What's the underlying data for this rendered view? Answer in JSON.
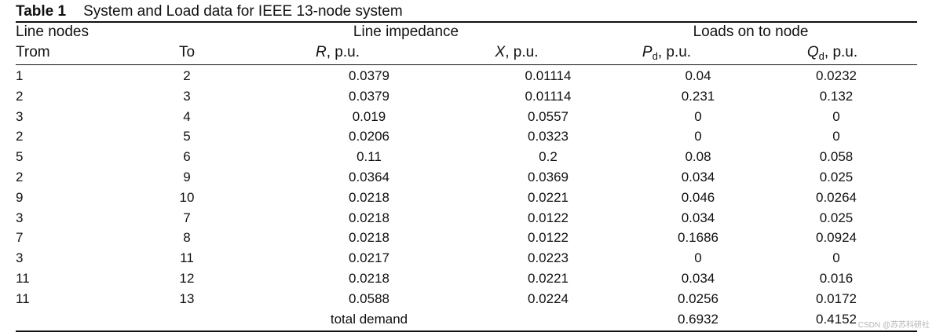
{
  "caption": {
    "label": "Table 1",
    "title": "System and Load data for IEEE 13-node system"
  },
  "headers": {
    "group_line_nodes": "Line nodes",
    "group_line_impedance": "Line impedance",
    "group_loads": "Loads on to node",
    "col_from": "Trom",
    "col_to": "To",
    "col_r_symbol": "R",
    "col_r_unit": ", p.u.",
    "col_x_symbol": "X",
    "col_x_unit": ", p.u.",
    "col_pd_symbol": "P",
    "col_pd_sub": "d",
    "col_pd_unit": ", p.u.",
    "col_qd_symbol": "Q",
    "col_qd_sub": "d",
    "col_qd_unit": ", p.u."
  },
  "rows": [
    {
      "from": "1",
      "to": "2",
      "r": "0.0379",
      "x": "0.01114",
      "pd": "0.04",
      "qd": "0.0232"
    },
    {
      "from": "2",
      "to": "3",
      "r": "0.0379",
      "x": "0.01114",
      "pd": "0.231",
      "qd": "0.132"
    },
    {
      "from": "3",
      "to": "4",
      "r": "0.019",
      "x": "0.0557",
      "pd": "0",
      "qd": "0"
    },
    {
      "from": "2",
      "to": "5",
      "r": "0.0206",
      "x": "0.0323",
      "pd": "0",
      "qd": "0"
    },
    {
      "from": "5",
      "to": "6",
      "r": "0.11",
      "x": "0.2",
      "pd": "0.08",
      "qd": "0.058"
    },
    {
      "from": "2",
      "to": "9",
      "r": "0.0364",
      "x": "0.0369",
      "pd": "0.034",
      "qd": "0.025"
    },
    {
      "from": "9",
      "to": "10",
      "r": "0.0218",
      "x": "0.0221",
      "pd": "0.046",
      "qd": "0.0264"
    },
    {
      "from": "3",
      "to": "7",
      "r": "0.0218",
      "x": "0.0122",
      "pd": "0.034",
      "qd": "0.025"
    },
    {
      "from": "7",
      "to": "8",
      "r": "0.0218",
      "x": "0.0122",
      "pd": "0.1686",
      "qd": "0.0924"
    },
    {
      "from": "3",
      "to": "11",
      "r": "0.0217",
      "x": "0.0223",
      "pd": "0",
      "qd": "0"
    },
    {
      "from": "11",
      "to": "12",
      "r": "0.0218",
      "x": "0.0221",
      "pd": "0.034",
      "qd": "0.016"
    },
    {
      "from": "11",
      "to": "13",
      "r": "0.0588",
      "x": "0.0224",
      "pd": "0.0256",
      "qd": "0.0172"
    }
  ],
  "total": {
    "label": "total demand",
    "pd": "0.6932",
    "qd": "0.4152"
  },
  "watermark": "CSDN @苏苏科研社"
}
